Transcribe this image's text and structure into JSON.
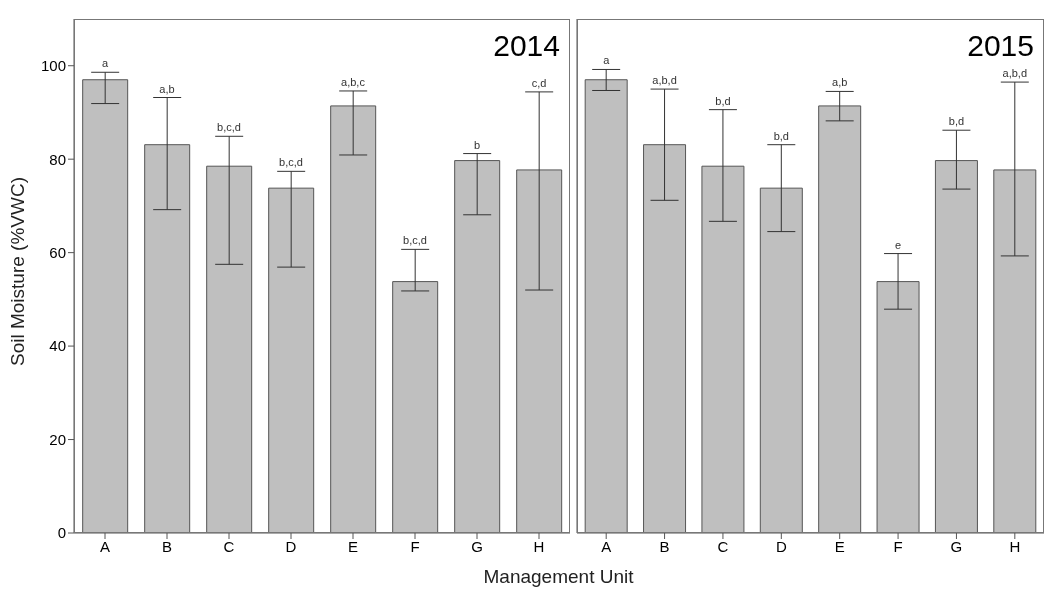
{
  "chart_data": [
    {
      "type": "bar",
      "title": "2014",
      "ylabel": "Soil Moisture (%VWC)",
      "xlabel": "Management Unit",
      "categories": [
        "A",
        "B",
        "C",
        "D",
        "E",
        "F",
        "G",
        "H"
      ],
      "values": [
        97.0,
        83.1,
        78.5,
        73.8,
        91.4,
        53.8,
        79.7,
        77.7
      ],
      "errors": [
        [
          91.9,
          98.6
        ],
        [
          69.2,
          93.2
        ],
        [
          57.5,
          84.9
        ],
        [
          56.9,
          77.4
        ],
        [
          80.9,
          94.6
        ],
        [
          51.8,
          60.7
        ],
        [
          68.1,
          81.2
        ],
        [
          52.0,
          94.4
        ]
      ],
      "color": "#bfbfbf",
      "ylim": [
        0,
        110
      ],
      "yticks": [
        0,
        20,
        40,
        60,
        80,
        100
      ],
      "grid": false,
      "annotations": [
        {
          "text": "a",
          "x": "A",
          "y": 98.6
        },
        {
          "text": "a,b",
          "x": "B",
          "y": 93.2
        },
        {
          "text": "b,c,d",
          "x": "C",
          "y": 84.9
        },
        {
          "text": "b,c,d",
          "x": "D",
          "y": 77.4
        },
        {
          "text": "a,b,c",
          "x": "E",
          "y": 94.6
        },
        {
          "text": "b,c,d",
          "x": "F",
          "y": 60.7
        },
        {
          "text": "b",
          "x": "G",
          "y": 81.2
        },
        {
          "text": "c,d",
          "x": "H",
          "y": 94.4
        }
      ]
    },
    {
      "type": "bar",
      "title": "2015",
      "categories": [
        "A",
        "B",
        "C",
        "D",
        "E",
        "F",
        "G",
        "H"
      ],
      "values": [
        97.0,
        83.1,
        78.5,
        73.8,
        91.4,
        53.8,
        79.7,
        77.7
      ],
      "errors": [
        [
          94.7,
          99.2
        ],
        [
          71.2,
          95.0
        ],
        [
          66.7,
          90.6
        ],
        [
          64.5,
          83.1
        ],
        [
          88.2,
          94.5
        ],
        [
          47.9,
          59.8
        ],
        [
          73.6,
          86.2
        ],
        [
          59.3,
          96.5
        ]
      ],
      "color": "#bfbfbf",
      "ylim": [
        0,
        110
      ],
      "yticks": [
        0,
        20,
        40,
        60,
        80,
        100
      ],
      "grid": false,
      "tick_labels": "x",
      "annotations": [
        {
          "text": "a",
          "x": "A",
          "y": 99.2
        },
        {
          "text": "a,b,d",
          "x": "B",
          "y": 95.0
        },
        {
          "text": "b,d",
          "x": "C",
          "y": 90.6
        },
        {
          "text": "b,d",
          "x": "D",
          "y": 83.1
        },
        {
          "text": "a,b",
          "x": "E",
          "y": 94.5
        },
        {
          "text": "e",
          "x": "F",
          "y": 59.8
        },
        {
          "text": "b,d",
          "x": "G",
          "y": 86.2
        },
        {
          "text": "a,b,d",
          "x": "H",
          "y": 96.5
        }
      ]
    }
  ]
}
